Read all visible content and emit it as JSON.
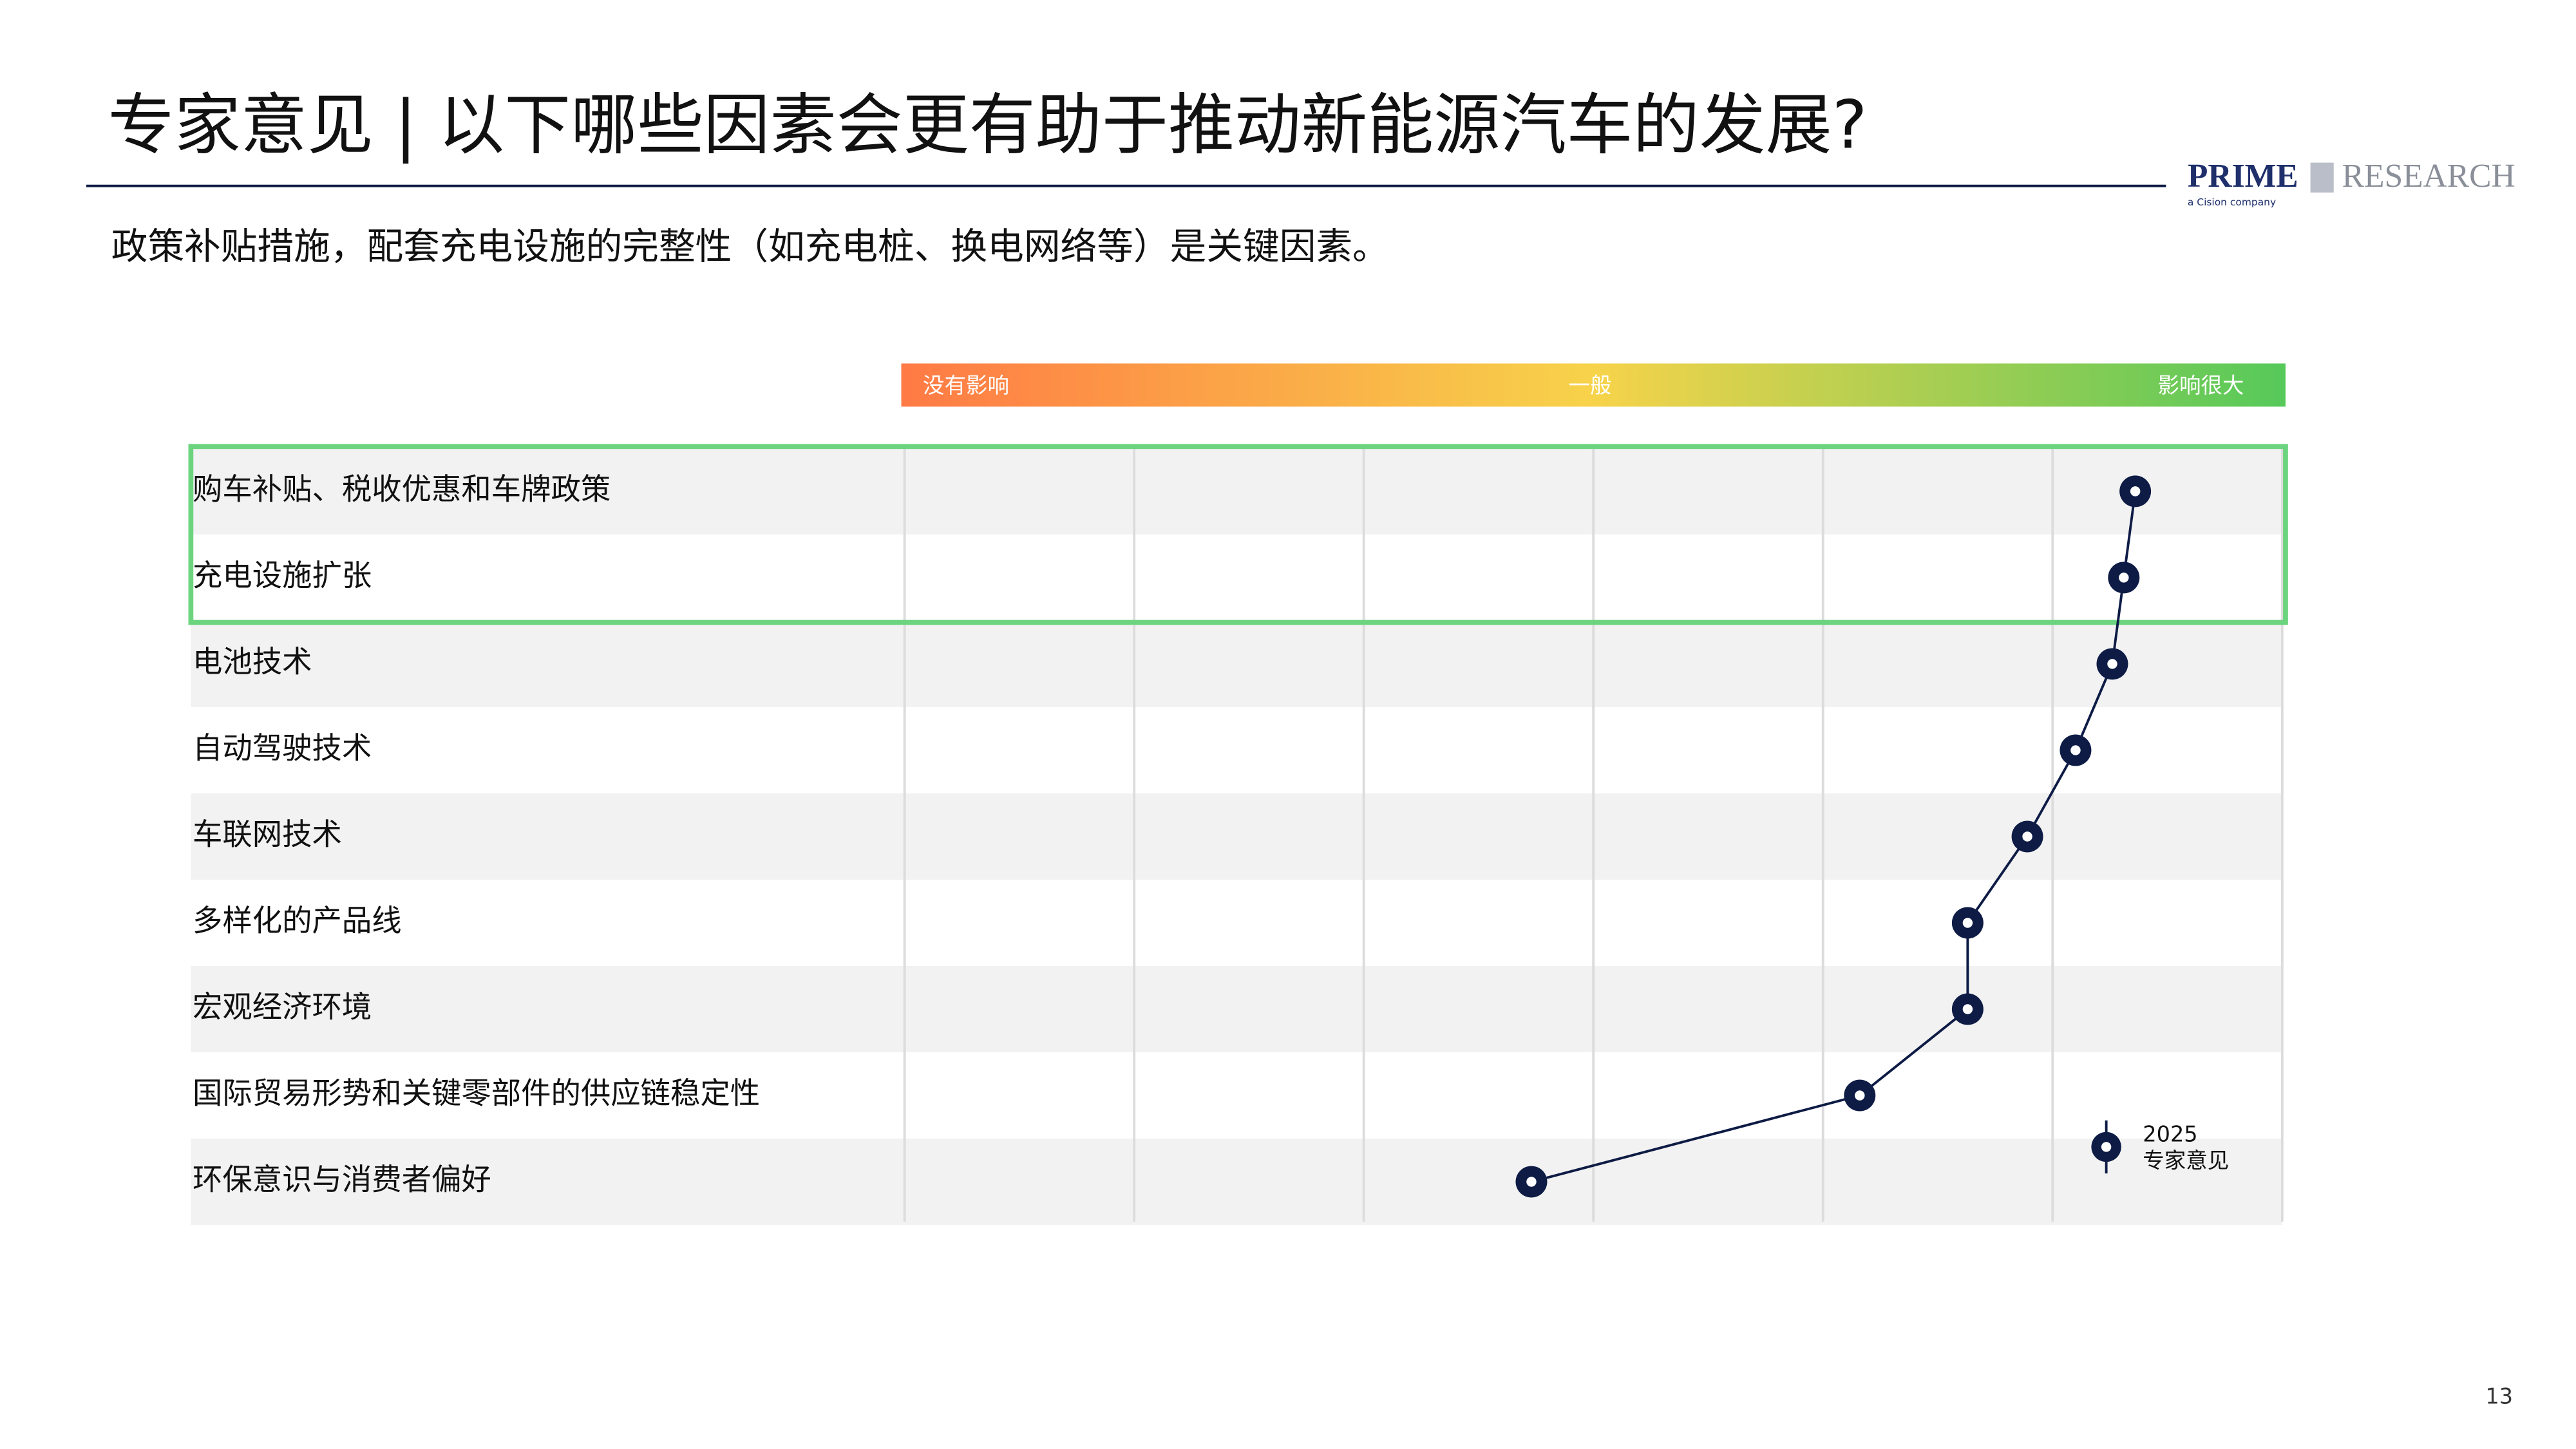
{
  "header": {
    "title": "专家意见 | 以下哪些因素会更有助于推动新能源汽车的发展?",
    "subtitle": "政策补贴措施，配套充电设施的完整性（如充电桩、换电网络等）是关键因素。"
  },
  "logo": {
    "brand": "PRIME",
    "brand2": "RESEARCH",
    "tagline": "a Cision company"
  },
  "page_number": "13",
  "chart_data": {
    "type": "dot",
    "categories": [
      "购车补贴、税收优惠和车牌政策",
      "充电设施扩张",
      "电池技术",
      "自动驾驶技术",
      "车联网技术",
      "多样化的产品线",
      "宏观经济环境",
      "国际贸易形势和关键零部件的供应链稳定性",
      "环保意识与消费者偏好"
    ],
    "series": [
      {
        "name": "2025",
        "legend_note": "专家意见",
        "color": "#0d1b45",
        "values": [
          5.36,
          5.31,
          5.26,
          5.1,
          4.89,
          4.63,
          4.63,
          4.16,
          2.73
        ]
      }
    ],
    "scale_labels": [
      "没有影响",
      "一般",
      "影响很大"
    ],
    "gradient": [
      "#ff7a45",
      "#f7d34a",
      "#55c95a"
    ],
    "xlim": [
      0,
      6
    ],
    "xticks": [
      0,
      1,
      2,
      3,
      4,
      5,
      6
    ],
    "grid": true,
    "highlight": {
      "rows": [
        0,
        1
      ],
      "color": "#6cd47f"
    }
  }
}
